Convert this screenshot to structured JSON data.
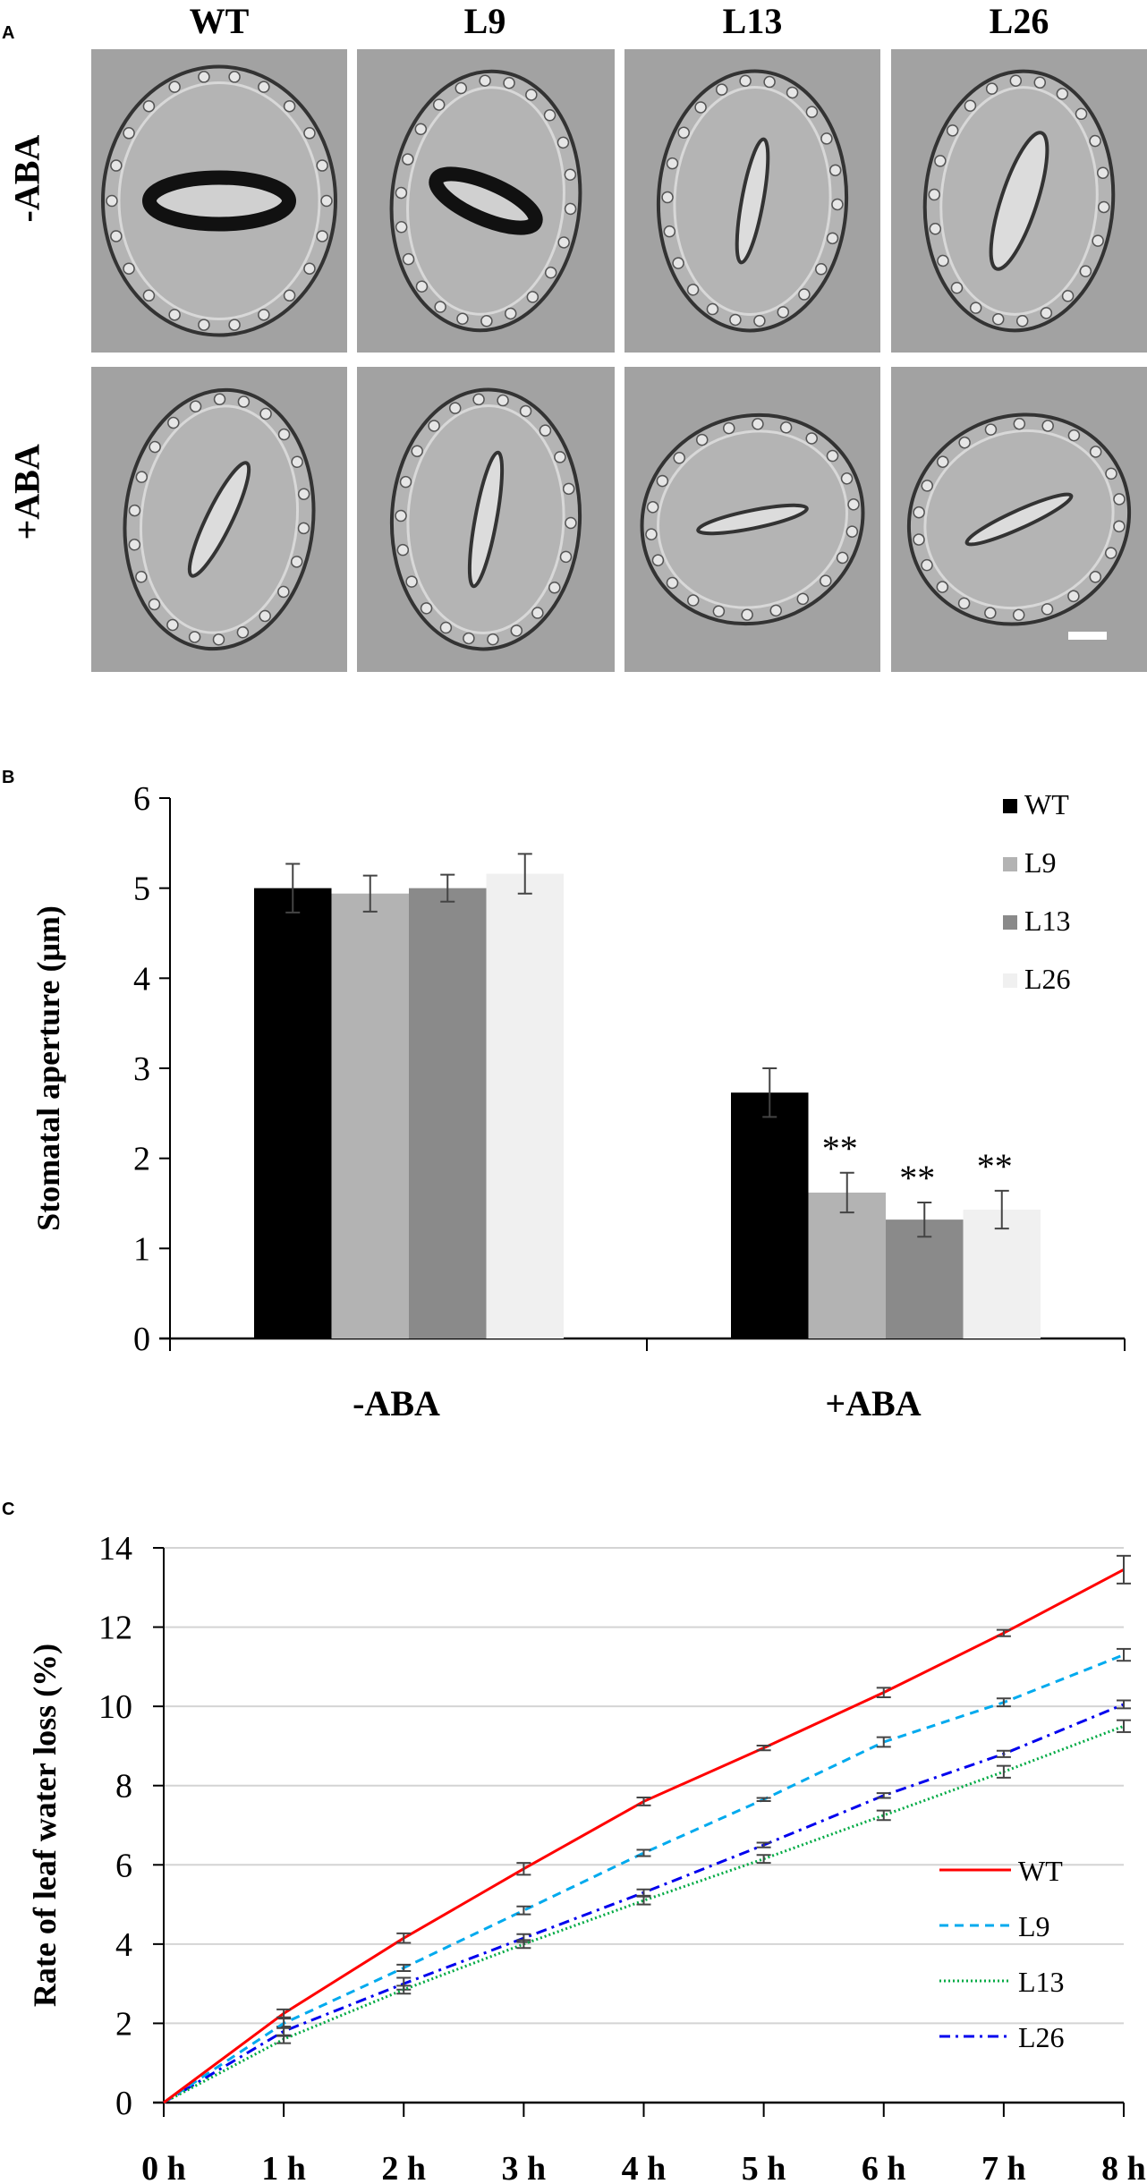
{
  "figure": {
    "panel_labels": {
      "a": "A",
      "b": "B",
      "c": "C"
    },
    "panel_a": {
      "columns": [
        "WT",
        "L9",
        "L13",
        "L26"
      ],
      "rows": [
        "-ABA",
        "+ABA"
      ],
      "scale_bar": "white scale bar (bottom-right panel)"
    }
  },
  "chart_data": [
    {
      "panel": "B",
      "type": "bar",
      "title": "",
      "xlabel": "",
      "ylabel": "Stomatal aperture (μm)",
      "categories": [
        "-ABA",
        "+ABA"
      ],
      "ylim": [
        0,
        6
      ],
      "yticks": [
        0,
        1,
        2,
        3,
        4,
        5,
        6
      ],
      "grid": false,
      "legend_position": "top-right",
      "series": [
        {
          "name": "WT",
          "color": "#000000",
          "values": [
            5.0,
            2.73
          ],
          "errors": [
            0.27,
            0.27
          ],
          "annotations": [
            "",
            ""
          ]
        },
        {
          "name": "L9",
          "color": "#b3b3b3",
          "values": [
            4.94,
            1.62
          ],
          "errors": [
            0.2,
            0.22
          ],
          "annotations": [
            "",
            "**"
          ]
        },
        {
          "name": "L13",
          "color": "#8a8a8a",
          "values": [
            5.0,
            1.32
          ],
          "errors": [
            0.15,
            0.19
          ],
          "annotations": [
            "",
            "**"
          ]
        },
        {
          "name": "L26",
          "color": "#f0f0f0",
          "values": [
            5.16,
            1.43
          ],
          "errors": [
            0.22,
            0.21
          ],
          "annotations": [
            "",
            "**"
          ]
        }
      ]
    },
    {
      "panel": "C",
      "type": "line",
      "title": "",
      "xlabel": "",
      "ylabel": "Rate of leaf water loss (%)",
      "x": [
        "0 h",
        "1 h",
        "2 h",
        "3 h",
        "4 h",
        "5 h",
        "6 h",
        "7 h",
        "8 h"
      ],
      "ylim": [
        0,
        14
      ],
      "yticks": [
        0,
        2,
        4,
        6,
        8,
        10,
        12,
        14
      ],
      "grid": true,
      "legend_position": "right",
      "series": [
        {
          "name": "WT",
          "color": "#ff0000",
          "style": "solid",
          "values": [
            0,
            2.25,
            4.15,
            5.9,
            7.6,
            8.95,
            10.35,
            11.85,
            13.45
          ],
          "errors": [
            0,
            0.1,
            0.12,
            0.15,
            0.1,
            0.06,
            0.12,
            0.08,
            0.35
          ]
        },
        {
          "name": "L9",
          "color": "#00aaee",
          "style": "dashed",
          "values": [
            0,
            2.0,
            3.4,
            4.85,
            6.3,
            7.65,
            9.1,
            10.1,
            11.3
          ],
          "errors": [
            0,
            0.12,
            0.08,
            0.1,
            0.08,
            0.04,
            0.12,
            0.1,
            0.15
          ]
        },
        {
          "name": "L13",
          "color": "#00aa44",
          "style": "dotted",
          "values": [
            0,
            1.6,
            2.85,
            4.0,
            5.1,
            6.15,
            7.25,
            8.35,
            9.5
          ],
          "errors": [
            0,
            0.1,
            0.1,
            0.1,
            0.1,
            0.1,
            0.12,
            0.15,
            0.15
          ]
        },
        {
          "name": "L26",
          "color": "#0000ee",
          "style": "dashdot",
          "values": [
            0,
            1.8,
            3.0,
            4.15,
            5.3,
            6.5,
            7.75,
            8.8,
            10.05
          ],
          "errors": [
            0,
            0.12,
            0.15,
            0.1,
            0.08,
            0.06,
            0.06,
            0.08,
            0.1
          ]
        }
      ]
    }
  ]
}
